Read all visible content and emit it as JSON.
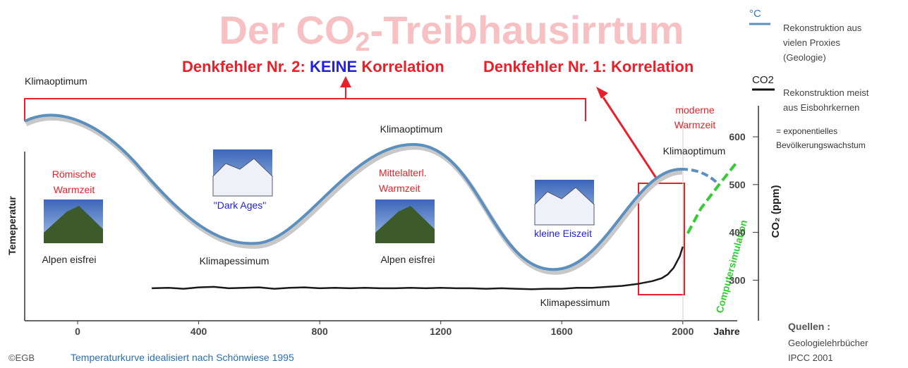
{
  "chart_data": {
    "type": "line",
    "title_parts": [
      "Der CO",
      "2",
      "-Treibhausirrtum"
    ],
    "headline_left": [
      "Denkfehler Nr. 2: ",
      "KEINE",
      " Korrelation"
    ],
    "headline_right": "Denkfehler Nr. 1: Korrelation",
    "y_label": "Temeperatur",
    "y2_label": "CO₂ (ppm)",
    "x_label": "Jahre",
    "xlim": [
      -175,
      2180
    ],
    "xticks": [
      0,
      400,
      800,
      1200,
      1600,
      2000
    ],
    "y2lim": [
      215,
      665
    ],
    "y2ticks": [
      300,
      400,
      500,
      600
    ],
    "series": [
      {
        "name": "CO2",
        "color": "#1a1a1a",
        "axis": "y2",
        "x": [
          245,
          300,
          350,
          400,
          450,
          500,
          550,
          600,
          650,
          700,
          750,
          800,
          850,
          900,
          950,
          1000,
          1050,
          1100,
          1150,
          1200,
          1250,
          1300,
          1350,
          1400,
          1450,
          1500,
          1550,
          1600,
          1650,
          1700,
          1750,
          1800,
          1850,
          1900,
          1930,
          1950,
          1970,
          1990,
          2000
        ],
        "values": [
          283,
          284,
          282,
          285,
          286,
          283,
          284,
          285,
          282,
          284,
          285,
          283,
          284,
          283,
          284,
          283,
          283,
          284,
          283,
          284,
          283,
          283,
          282,
          283,
          282,
          281,
          282,
          282,
          284,
          284,
          286,
          288,
          292,
          298,
          304,
          312,
          326,
          350,
          370
        ]
      },
      {
        "name": "Computersimulation",
        "color": "#33cc33",
        "axis": "y2",
        "x": [
          2016,
          2060,
          2120,
          2180
        ],
        "values": [
          398,
          450,
          500,
          548
        ]
      }
    ],
    "annotations": [
      {
        "lines": [
          "Klimaoptimum"
        ]
      },
      {
        "lines": [
          "Römische",
          "Warmzeit"
        ]
      },
      {
        "lines": [
          "Alpen eisfrei"
        ]
      },
      {
        "lines": [
          "\"Dark Ages\""
        ]
      },
      {
        "lines": [
          "Klimapessimum"
        ]
      },
      {
        "lines": [
          "Klimaoptimum"
        ]
      },
      {
        "lines": [
          "Mittelalterl.",
          "Warmzeit"
        ]
      },
      {
        "lines": [
          "Alpen eisfrei"
        ]
      },
      {
        "lines": [
          "kleine Eiszeit"
        ]
      },
      {
        "lines": [
          "Klimapessimum"
        ]
      },
      {
        "lines": [
          "moderne",
          "Warmzeit"
        ]
      },
      {
        "lines": [
          "Klimaoptimum"
        ]
      }
    ],
    "legend": [
      {
        "symbol": "°C",
        "lines": [
          "Rekonstruktion aus",
          "vielen Proxies",
          "(Geologie)"
        ]
      },
      {
        "symbol": "CO2",
        "lines": [
          "Rekonstruktion meist",
          "aus Eisbohrkernen"
        ]
      },
      {
        "lines": [
          "= exponentielles",
          "Bevölkerungswachstum"
        ]
      }
    ],
    "sources": [
      "Quellen :",
      "Geologielehrbücher",
      "IPCC 2001"
    ],
    "copyright": "©EGB",
    "footnote": "Temperaturkurve idealisiert nach Schönwiese 1995"
  }
}
